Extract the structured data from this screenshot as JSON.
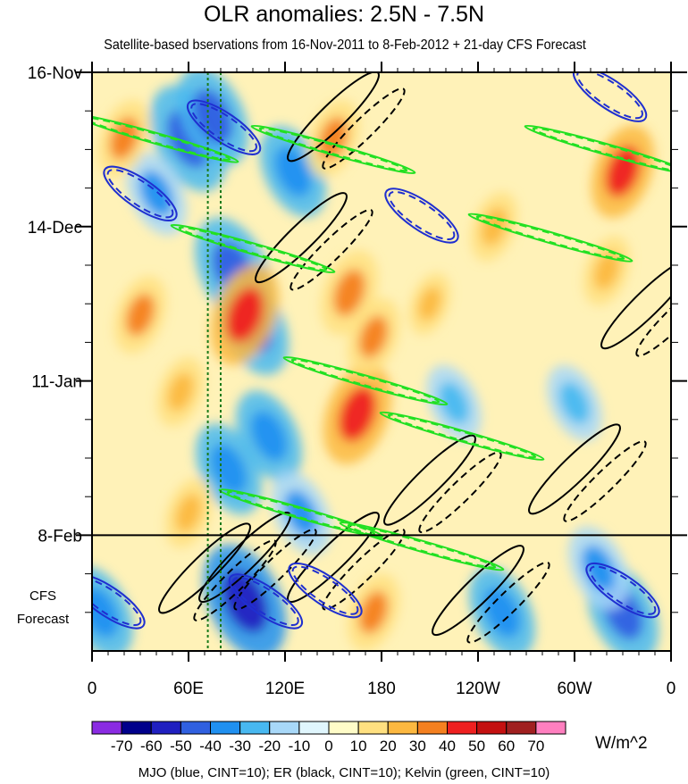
{
  "title": "OLR anomalies: 2.5N - 7.5N",
  "subtitle": "Satellite-based bservations from 16-Nov-2011 to 8-Feb-2012 + 21-day CFS Forecast",
  "footnote": "MJO (blue, CINT=10); ER (black, CINT=10); Kelvin (green, CINT=10)",
  "colors": {
    "mjo": "#1f2fd0",
    "er": "#000000",
    "kelvin": "#22e022",
    "marker": "#1a7a1a"
  },
  "chart_data": {
    "type": "heatmap",
    "x_ticks": [
      "0",
      "60E",
      "120E",
      "180",
      "120W",
      "60W",
      "0"
    ],
    "x_range_deg_east": [
      0,
      360
    ],
    "y_ticks": [
      {
        "label": "16-Nov",
        "day": 0
      },
      {
        "label": "14-Dec",
        "day": 28
      },
      {
        "label": "11-Jan",
        "day": 56
      },
      {
        "label": "8-Feb",
        "day": 84
      }
    ],
    "y_range_days": [
      0,
      105
    ],
    "observation_end_day": 84,
    "forecast_days": 21,
    "forecast_label_line1": "CFS",
    "forecast_label_line2": "Forecast",
    "marker_lines_deg_east": [
      72,
      80
    ],
    "colorbar": {
      "unit": "W/m^2",
      "labels": [
        "-70",
        "-60",
        "-50",
        "-40",
        "-30",
        "-20",
        "-10",
        "0",
        "10",
        "20",
        "30",
        "40",
        "50",
        "60",
        "70"
      ],
      "levels": [
        -70,
        -60,
        -50,
        -40,
        -30,
        -20,
        -10,
        0,
        10,
        20,
        30,
        40,
        50,
        60,
        70
      ],
      "colors": [
        "#8a2be2",
        "#00008b",
        "#2020c0",
        "#3060e0",
        "#2090f0",
        "#48b8f0",
        "#a8d8f8",
        "#e0f6fd",
        "#fffcc8",
        "#ffe080",
        "#fcb840",
        "#f48020",
        "#ee2020",
        "#c41010",
        "#a02020",
        "#ff7fbf"
      ]
    },
    "anomaly_features": [
      {
        "lon": 60,
        "day": 12,
        "value": -50
      },
      {
        "lon": 75,
        "day": 8,
        "value": -45
      },
      {
        "lon": 88,
        "day": 36,
        "value": -50
      },
      {
        "lon": 100,
        "day": 46,
        "value": -45
      },
      {
        "lon": 125,
        "day": 18,
        "value": -40
      },
      {
        "lon": 110,
        "day": 66,
        "value": -40
      },
      {
        "lon": 130,
        "day": 80,
        "value": -35
      },
      {
        "lon": 95,
        "day": 96,
        "value": -55
      },
      {
        "lon": 40,
        "day": 22,
        "value": -35
      },
      {
        "lon": 85,
        "day": 72,
        "value": -40
      },
      {
        "lon": 255,
        "day": 98,
        "value": -40
      },
      {
        "lon": 330,
        "day": 98,
        "value": -45
      },
      {
        "lon": 315,
        "day": 90,
        "value": -35
      },
      {
        "lon": 225,
        "day": 60,
        "value": -30
      },
      {
        "lon": 300,
        "day": 60,
        "value": -30
      },
      {
        "lon": 5,
        "day": 98,
        "value": -40
      },
      {
        "lon": 95,
        "day": 44,
        "value": 45
      },
      {
        "lon": 165,
        "day": 62,
        "value": 45
      },
      {
        "lon": 160,
        "day": 40,
        "value": 35
      },
      {
        "lon": 175,
        "day": 48,
        "value": 30
      },
      {
        "lon": 20,
        "day": 12,
        "value": 30
      },
      {
        "lon": 30,
        "day": 44,
        "value": 30
      },
      {
        "lon": 60,
        "day": 80,
        "value": 25
      },
      {
        "lon": 150,
        "day": 12,
        "value": 30
      },
      {
        "lon": 175,
        "day": 98,
        "value": 30
      },
      {
        "lon": 250,
        "day": 28,
        "value": 25
      },
      {
        "lon": 320,
        "day": 36,
        "value": 25
      },
      {
        "lon": 330,
        "day": 18,
        "value": 40
      },
      {
        "lon": 210,
        "day": 42,
        "value": 20
      },
      {
        "lon": 55,
        "day": 58,
        "value": 25
      }
    ],
    "mjo_contours": [
      {
        "lon": 30,
        "day": 22,
        "value": -10
      },
      {
        "lon": 82,
        "day": 10,
        "value": -10
      },
      {
        "lon": 108,
        "day": 96,
        "value": -10
      },
      {
        "lon": 145,
        "day": 94,
        "value": -10
      },
      {
        "lon": 205,
        "day": 26,
        "value": -10
      },
      {
        "lon": 322,
        "day": 4,
        "value": -10
      },
      {
        "lon": 330,
        "day": 94,
        "value": -10
      },
      {
        "lon": 10,
        "day": 96,
        "value": -10
      }
    ],
    "er_contours": [
      {
        "lon": 70,
        "day": 90,
        "value": -10
      },
      {
        "lon": 95,
        "day": 88,
        "value": -10
      },
      {
        "lon": 150,
        "day": 88,
        "value": -10
      },
      {
        "lon": 240,
        "day": 94,
        "value": -10
      },
      {
        "lon": 300,
        "day": 72,
        "value": -10
      },
      {
        "lon": 345,
        "day": 42,
        "value": -10
      },
      {
        "lon": 130,
        "day": 30,
        "value": -10
      },
      {
        "lon": 150,
        "day": 8,
        "value": -10
      },
      {
        "lon": 210,
        "day": 74,
        "value": -10
      }
    ],
    "kelvin_contours": [
      {
        "lon": 40,
        "day": 12,
        "value": -10
      },
      {
        "lon": 100,
        "day": 32,
        "value": -10
      },
      {
        "lon": 150,
        "day": 14,
        "value": -10
      },
      {
        "lon": 170,
        "day": 56,
        "value": -10
      },
      {
        "lon": 230,
        "day": 66,
        "value": -10
      },
      {
        "lon": 285,
        "day": 30,
        "value": -10
      },
      {
        "lon": 320,
        "day": 14,
        "value": -10
      },
      {
        "lon": 130,
        "day": 80,
        "value": -10
      },
      {
        "lon": 205,
        "day": 86,
        "value": -10
      }
    ]
  }
}
